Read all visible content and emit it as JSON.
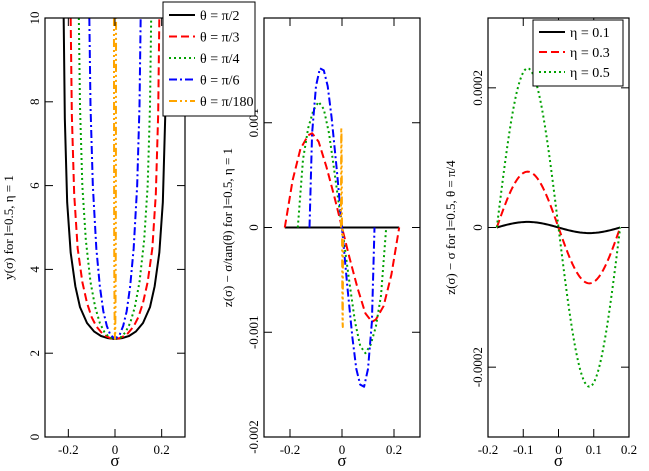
{
  "chart_data": [
    {
      "type": "line",
      "xlabel": "σ",
      "ylabel": "y(σ)   for  l=0.5, η = 1",
      "xlim": [
        -0.3,
        0.3
      ],
      "ylim": [
        0,
        10
      ],
      "xticks": [
        -0.2,
        0,
        0.2
      ],
      "xtick_labels": [
        "-0.2",
        "0",
        "0.2"
      ],
      "yticks": [
        0,
        2,
        4,
        6,
        8,
        10
      ],
      "ytick_labels": [
        "0",
        "2",
        "4",
        "6",
        "8",
        "10"
      ],
      "grid": false,
      "legend": "top-right",
      "series": [
        {
          "name": "θ = π/2",
          "color": "#000000",
          "dash": "solid",
          "x": [
            -0.22,
            -0.215,
            -0.205,
            -0.19,
            -0.17,
            -0.15,
            -0.12,
            -0.09,
            -0.06,
            -0.03,
            0,
            0.03,
            0.06,
            0.09,
            0.12,
            0.15,
            0.17,
            0.19,
            0.205,
            0.215,
            0.22
          ],
          "y": [
            10,
            7.6,
            5.6,
            4.4,
            3.6,
            3.1,
            2.72,
            2.52,
            2.41,
            2.36,
            2.34,
            2.36,
            2.41,
            2.52,
            2.72,
            3.1,
            3.6,
            4.4,
            5.6,
            7.6,
            10
          ]
        },
        {
          "name": "θ = π/3",
          "color": "#ff0000",
          "dash": "dashed",
          "x": [
            -0.19,
            -0.185,
            -0.175,
            -0.16,
            -0.14,
            -0.12,
            -0.1,
            -0.08,
            -0.05,
            -0.02,
            0,
            0.02,
            0.05,
            0.08,
            0.1,
            0.12,
            0.14,
            0.16,
            0.175,
            0.185,
            0.19
          ],
          "y": [
            10,
            7.7,
            5.8,
            4.5,
            3.7,
            3.2,
            2.86,
            2.64,
            2.44,
            2.36,
            2.34,
            2.36,
            2.44,
            2.64,
            2.86,
            3.2,
            3.7,
            4.5,
            5.8,
            7.7,
            10
          ]
        },
        {
          "name": "θ = π/4",
          "color": "#00a000",
          "dash": "dotted",
          "x": [
            -0.155,
            -0.15,
            -0.14,
            -0.125,
            -0.105,
            -0.085,
            -0.065,
            -0.045,
            -0.025,
            0,
            0.025,
            0.045,
            0.065,
            0.085,
            0.105,
            0.125,
            0.14,
            0.15,
            0.155
          ],
          "y": [
            10,
            7.9,
            6.0,
            4.7,
            3.7,
            3.1,
            2.72,
            2.5,
            2.38,
            2.34,
            2.38,
            2.5,
            2.72,
            3.1,
            3.7,
            4.7,
            6.0,
            7.9,
            10
          ]
        },
        {
          "name": "θ = π/6",
          "color": "#0000ff",
          "dash": "dashdot",
          "x": [
            -0.11,
            -0.105,
            -0.095,
            -0.08,
            -0.065,
            -0.05,
            -0.035,
            -0.02,
            0,
            0.02,
            0.035,
            0.05,
            0.065,
            0.08,
            0.095,
            0.105,
            0.11
          ],
          "y": [
            10,
            7.9,
            6.0,
            4.5,
            3.6,
            3.0,
            2.65,
            2.44,
            2.34,
            2.44,
            2.65,
            3.0,
            3.6,
            4.5,
            6.0,
            7.9,
            10
          ]
        },
        {
          "name": "θ = π/180",
          "color": "#ffa500",
          "dash": "dashdotdot",
          "x": [
            -0.0045,
            -0.004,
            -0.0035,
            -0.003,
            -0.002,
            -0.001,
            0,
            0.001,
            0.002,
            0.003,
            0.0035,
            0.004,
            0.0045
          ],
          "y": [
            10,
            7.0,
            5.0,
            3.9,
            3.0,
            2.5,
            2.34,
            2.5,
            3.0,
            3.9,
            5.0,
            7.0,
            10
          ]
        }
      ]
    },
    {
      "type": "line",
      "xlabel": "σ",
      "ylabel": "z(σ) − σ/tan(θ)   for  l=0.5, η = 1",
      "xlim": [
        -0.3,
        0.3
      ],
      "ylim": [
        -0.002,
        0.002
      ],
      "xticks": [
        -0.2,
        0,
        0.2
      ],
      "xtick_labels": [
        "-0.2",
        "0",
        "0.2"
      ],
      "yticks": [
        -0.002,
        -0.001,
        0,
        0.001
      ],
      "ytick_labels": [
        "-0.002",
        "-0.001",
        "0",
        "0.001"
      ],
      "grid": false,
      "series": [
        {
          "name": "θ = π/2",
          "color": "#000000",
          "dash": "solid",
          "x": [
            -0.22,
            0.22
          ],
          "y": [
            0,
            0
          ]
        },
        {
          "name": "θ = π/3",
          "color": "#ff0000",
          "dash": "dashed",
          "x": [
            -0.22,
            -0.19,
            -0.16,
            -0.13,
            -0.115,
            -0.09,
            -0.06,
            -0.03,
            0,
            0.03,
            0.06,
            0.09,
            0.115,
            0.13,
            0.16,
            0.19,
            0.22
          ],
          "y": [
            0,
            0.00045,
            0.00075,
            0.00088,
            0.0009,
            0.00082,
            0.00058,
            0.0003,
            0,
            -0.0003,
            -0.00058,
            -0.00082,
            -0.0009,
            -0.00088,
            -0.00075,
            -0.00045,
            0
          ]
        },
        {
          "name": "θ = π/4",
          "color": "#00a000",
          "dash": "dotted",
          "x": [
            -0.17,
            -0.15,
            -0.13,
            -0.11,
            -0.09,
            -0.07,
            -0.05,
            -0.03,
            0,
            0.03,
            0.05,
            0.07,
            0.09,
            0.11,
            0.13,
            0.15,
            0.17
          ],
          "y": [
            0,
            0.00065,
            0.00095,
            0.00112,
            0.0012,
            0.00113,
            0.0009,
            0.00055,
            0,
            -0.00055,
            -0.0009,
            -0.00113,
            -0.0012,
            -0.00112,
            -0.00095,
            -0.00065,
            0
          ]
        },
        {
          "name": "θ = π/6",
          "color": "#0000ff",
          "dash": "dashdot",
          "x": [
            -0.125,
            -0.115,
            -0.1,
            -0.085,
            -0.07,
            -0.055,
            -0.04,
            -0.02,
            0,
            0.02,
            0.04,
            0.055,
            0.07,
            0.085,
            0.1,
            0.115,
            0.125
          ],
          "y": [
            0,
            0.0009,
            0.00135,
            0.00152,
            0.0015,
            0.00135,
            0.00105,
            0.00055,
            0,
            -0.00055,
            -0.00105,
            -0.00135,
            -0.0015,
            -0.00152,
            -0.00135,
            -0.0009,
            0
          ]
        },
        {
          "name": "θ = π/180",
          "color": "#ffa500",
          "dash": "dashdotdot",
          "x": [
            -0.004,
            -0.003,
            -0.002,
            -0.001,
            0,
            0.001,
            0.002,
            0.003,
            0.004
          ],
          "y": [
            0,
            0.00095,
            0.0009,
            0.00052,
            0,
            -0.00052,
            -0.0009,
            -0.00095,
            0
          ]
        }
      ]
    },
    {
      "type": "line",
      "xlabel": "σ",
      "ylabel": "z(σ) − σ    for  l=0.5, θ = π/4",
      "xlim": [
        -0.2,
        0.2
      ],
      "ylim": [
        -0.0003,
        0.0003
      ],
      "xticks": [
        -0.2,
        -0.1,
        0,
        0.1,
        0.2
      ],
      "xtick_labels": [
        "-0.2",
        "-0.1",
        "0",
        "0.1",
        "0.2"
      ],
      "yticks": [
        -0.0002,
        0,
        0.0002
      ],
      "ytick_labels": [
        "-0.0002",
        "0",
        "0.0002"
      ],
      "grid": false,
      "legend": "top-right",
      "series": [
        {
          "name": "η = 0.1",
          "color": "#000000",
          "dash": "solid",
          "amplitude": 8e-06,
          "xmax": 0.175
        },
        {
          "name": "η = 0.3",
          "color": "#ff0000",
          "dash": "dashed",
          "amplitude": 8e-05,
          "xmax": 0.175
        },
        {
          "name": "η = 0.5",
          "color": "#00a000",
          "dash": "dotted",
          "amplitude": 0.000228,
          "xmax": 0.175
        }
      ]
    }
  ]
}
